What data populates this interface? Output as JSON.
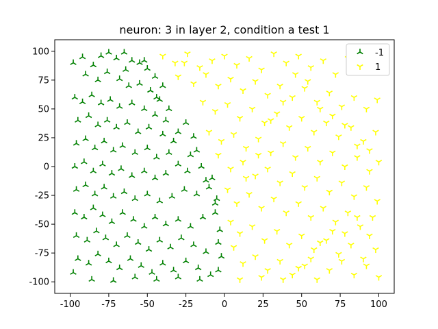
{
  "chart_data": {
    "type": "scatter",
    "title": "neuron: 3 in layer 2, condition a test 1",
    "xlabel": "",
    "ylabel": "",
    "xlim": [
      -110,
      110
    ],
    "ylim": [
      -110,
      110
    ],
    "xticks": [
      -100,
      -75,
      -50,
      -25,
      0,
      25,
      50,
      75,
      100
    ],
    "yticks": [
      -100,
      -75,
      -50,
      -25,
      0,
      25,
      50,
      75,
      100
    ],
    "grid": false,
    "legend_position": "top-right",
    "series": [
      {
        "name": "-1",
        "color": "#008000",
        "marker": "tri-up",
        "points": [
          [
            -98,
            90
          ],
          [
            -92,
            95
          ],
          [
            -85,
            88
          ],
          [
            -80,
            96
          ],
          [
            -75,
            99
          ],
          [
            -70,
            94
          ],
          [
            -65,
            99
          ],
          [
            -60,
            92
          ],
          [
            -55,
            90
          ],
          [
            -50,
            85
          ],
          [
            -45,
            78
          ],
          [
            -40,
            70
          ],
          [
            -90,
            80
          ],
          [
            -82,
            75
          ],
          [
            -76,
            82
          ],
          [
            -68,
            76
          ],
          [
            -62,
            70
          ],
          [
            -55,
            72
          ],
          [
            -48,
            66
          ],
          [
            -42,
            58
          ],
          [
            -97,
            60
          ],
          [
            -92,
            56
          ],
          [
            -86,
            62
          ],
          [
            -80,
            55
          ],
          [
            -74,
            58
          ],
          [
            -68,
            52
          ],
          [
            -60,
            55
          ],
          [
            -52,
            50
          ],
          [
            -45,
            45
          ],
          [
            -38,
            40
          ],
          [
            -95,
            40
          ],
          [
            -88,
            44
          ],
          [
            -82,
            36
          ],
          [
            -76,
            40
          ],
          [
            -70,
            34
          ],
          [
            -63,
            38
          ],
          [
            -56,
            30
          ],
          [
            -49,
            34
          ],
          [
            -40,
            28
          ],
          [
            -33,
            22
          ],
          [
            -96,
            20
          ],
          [
            -90,
            24
          ],
          [
            -84,
            16
          ],
          [
            -78,
            22
          ],
          [
            -72,
            14
          ],
          [
            -66,
            18
          ],
          [
            -58,
            12
          ],
          [
            -50,
            16
          ],
          [
            -44,
            8
          ],
          [
            -36,
            12
          ],
          [
            -97,
            0
          ],
          [
            -91,
            4
          ],
          [
            -85,
            -4
          ],
          [
            -79,
            2
          ],
          [
            -73,
            -6
          ],
          [
            -67,
            -2
          ],
          [
            -60,
            -8
          ],
          [
            -52,
            -4
          ],
          [
            -45,
            -10
          ],
          [
            -38,
            -6
          ],
          [
            -96,
            -20
          ],
          [
            -90,
            -16
          ],
          [
            -84,
            -24
          ],
          [
            -78,
            -18
          ],
          [
            -72,
            -26
          ],
          [
            -65,
            -22
          ],
          [
            -58,
            -28
          ],
          [
            -50,
            -24
          ],
          [
            -42,
            -30
          ],
          [
            -34,
            -26
          ],
          [
            -26,
            -20
          ],
          [
            -18,
            -24
          ],
          [
            -10,
            -18
          ],
          [
            -5,
            -28
          ],
          [
            -30,
            30
          ],
          [
            -25,
            38
          ],
          [
            -20,
            26
          ],
          [
            -22,
            10
          ],
          [
            -15,
            0
          ],
          [
            -8,
            -10
          ],
          [
            -97,
            -40
          ],
          [
            -91,
            -44
          ],
          [
            -85,
            -36
          ],
          [
            -79,
            -42
          ],
          [
            -73,
            -48
          ],
          [
            -66,
            -40
          ],
          [
            -59,
            -46
          ],
          [
            -52,
            -52
          ],
          [
            -45,
            -44
          ],
          [
            -38,
            -50
          ],
          [
            -30,
            -46
          ],
          [
            -22,
            -52
          ],
          [
            -14,
            -44
          ],
          [
            -6,
            -40
          ],
          [
            -96,
            -60
          ],
          [
            -89,
            -64
          ],
          [
            -83,
            -56
          ],
          [
            -77,
            -62
          ],
          [
            -70,
            -68
          ],
          [
            -63,
            -60
          ],
          [
            -56,
            -66
          ],
          [
            -49,
            -72
          ],
          [
            -42,
            -64
          ],
          [
            -35,
            -70
          ],
          [
            -28,
            -62
          ],
          [
            -20,
            -68
          ],
          [
            -12,
            -74
          ],
          [
            -4,
            -66
          ],
          [
            -95,
            -80
          ],
          [
            -88,
            -84
          ],
          [
            -82,
            -76
          ],
          [
            -75,
            -82
          ],
          [
            -68,
            -88
          ],
          [
            -61,
            -80
          ],
          [
            -54,
            -86
          ],
          [
            -47,
            -92
          ],
          [
            -40,
            -84
          ],
          [
            -33,
            -90
          ],
          [
            -25,
            -82
          ],
          [
            -17,
            -88
          ],
          [
            -9,
            -94
          ],
          [
            -98,
            -92
          ],
          [
            -86,
            -98
          ],
          [
            -72,
            -99
          ],
          [
            -58,
            -96
          ],
          [
            -44,
            -98
          ],
          [
            -30,
            -96
          ],
          [
            -16,
            -98
          ],
          [
            -4,
            -90
          ],
          [
            -2,
            -78
          ],
          [
            -3,
            -55
          ],
          [
            -6,
            -32
          ],
          [
            -12,
            -12
          ],
          [
            -18,
            14
          ],
          [
            -24,
            -4
          ],
          [
            -30,
            2
          ],
          [
            -36,
            50
          ],
          [
            -44,
            60
          ],
          [
            -52,
            92
          ],
          [
            -64,
            84
          ]
        ]
      },
      {
        "name": "1",
        "color": "#ffff00",
        "marker": "tri-down",
        "points": [
          [
            -40,
            96
          ],
          [
            -32,
            90
          ],
          [
            -24,
            98
          ],
          [
            -16,
            86
          ],
          [
            -8,
            92
          ],
          [
            0,
            96
          ],
          [
            8,
            88
          ],
          [
            16,
            94
          ],
          [
            24,
            84
          ],
          [
            32,
            98
          ],
          [
            40,
            90
          ],
          [
            48,
            96
          ],
          [
            56,
            86
          ],
          [
            64,
            92
          ],
          [
            72,
            80
          ],
          [
            80,
            94
          ],
          [
            88,
            84
          ],
          [
            96,
            90
          ],
          [
            -30,
            78
          ],
          [
            -20,
            72
          ],
          [
            -12,
            80
          ],
          [
            -4,
            70
          ],
          [
            4,
            76
          ],
          [
            12,
            66
          ],
          [
            20,
            74
          ],
          [
            28,
            62
          ],
          [
            36,
            70
          ],
          [
            44,
            60
          ],
          [
            52,
            68
          ],
          [
            60,
            56
          ],
          [
            68,
            64
          ],
          [
            76,
            52
          ],
          [
            84,
            60
          ],
          [
            92,
            50
          ],
          [
            99,
            58
          ],
          [
            -14,
            56
          ],
          [
            -6,
            48
          ],
          [
            2,
            54
          ],
          [
            10,
            42
          ],
          [
            18,
            50
          ],
          [
            26,
            38
          ],
          [
            34,
            46
          ],
          [
            42,
            34
          ],
          [
            50,
            42
          ],
          [
            58,
            30
          ],
          [
            66,
            38
          ],
          [
            74,
            26
          ],
          [
            82,
            34
          ],
          [
            90,
            22
          ],
          [
            98,
            30
          ],
          [
            -10,
            30
          ],
          [
            -2,
            22
          ],
          [
            6,
            28
          ],
          [
            14,
            16
          ],
          [
            22,
            24
          ],
          [
            30,
            12
          ],
          [
            38,
            20
          ],
          [
            46,
            8
          ],
          [
            54,
            16
          ],
          [
            62,
            4
          ],
          [
            70,
            12
          ],
          [
            78,
            0
          ],
          [
            86,
            8
          ],
          [
            94,
            -4
          ],
          [
            100,
            4
          ],
          [
            -4,
            10
          ],
          [
            4,
            -2
          ],
          [
            12,
            4
          ],
          [
            20,
            -8
          ],
          [
            28,
            -2
          ],
          [
            36,
            -14
          ],
          [
            44,
            -6
          ],
          [
            52,
            -18
          ],
          [
            60,
            -10
          ],
          [
            68,
            -22
          ],
          [
            76,
            -14
          ],
          [
            84,
            -26
          ],
          [
            92,
            -18
          ],
          [
            99,
            -30
          ],
          [
            2,
            -20
          ],
          [
            8,
            -32
          ],
          [
            16,
            -24
          ],
          [
            24,
            -36
          ],
          [
            32,
            -28
          ],
          [
            40,
            -40
          ],
          [
            48,
            -32
          ],
          [
            56,
            -44
          ],
          [
            64,
            -36
          ],
          [
            72,
            -48
          ],
          [
            80,
            -40
          ],
          [
            88,
            -52
          ],
          [
            96,
            -44
          ],
          [
            4,
            -48
          ],
          [
            10,
            -58
          ],
          [
            18,
            -52
          ],
          [
            26,
            -64
          ],
          [
            34,
            -56
          ],
          [
            42,
            -68
          ],
          [
            50,
            -60
          ],
          [
            58,
            -72
          ],
          [
            66,
            -64
          ],
          [
            74,
            -76
          ],
          [
            82,
            -68
          ],
          [
            90,
            -80
          ],
          [
            98,
            -72
          ],
          [
            6,
            -70
          ],
          [
            12,
            -84
          ],
          [
            20,
            -78
          ],
          [
            28,
            -90
          ],
          [
            36,
            -82
          ],
          [
            44,
            -94
          ],
          [
            52,
            -86
          ],
          [
            60,
            -98
          ],
          [
            68,
            -90
          ],
          [
            76,
            -82
          ],
          [
            84,
            -94
          ],
          [
            92,
            -86
          ],
          [
            100,
            -96
          ],
          [
            10,
            -98
          ],
          [
            24,
            -96
          ],
          [
            38,
            -98
          ],
          [
            48,
            -88
          ],
          [
            56,
            -80
          ],
          [
            62,
            -66
          ],
          [
            70,
            -56
          ],
          [
            78,
            -58
          ],
          [
            86,
            -44
          ],
          [
            94,
            -60
          ],
          [
            14,
            -10
          ],
          [
            22,
            10
          ],
          [
            30,
            40
          ],
          [
            38,
            56
          ],
          [
            46,
            80
          ],
          [
            54,
            74
          ],
          [
            62,
            50
          ],
          [
            70,
            44
          ],
          [
            78,
            36
          ],
          [
            86,
            18
          ],
          [
            94,
            14
          ],
          [
            -26,
            90
          ]
        ]
      }
    ]
  }
}
